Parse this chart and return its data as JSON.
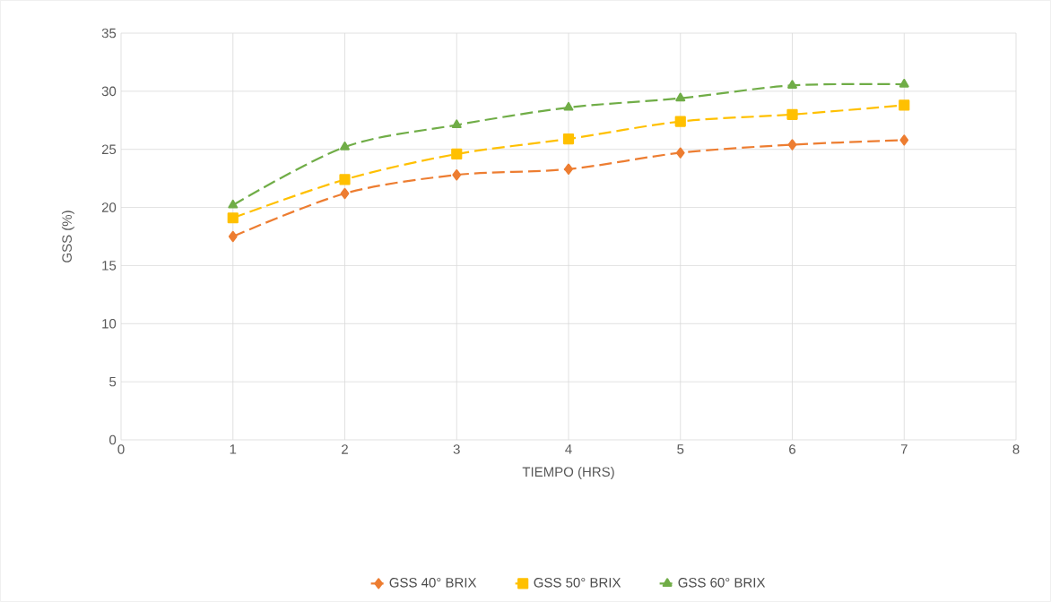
{
  "chart_data": {
    "type": "line",
    "xlabel": "TIEMPO (HRS)",
    "ylabel": "GSS (%)",
    "x": [
      1,
      2,
      3,
      4,
      5,
      6,
      7
    ],
    "series": [
      {
        "name": "GSS 40° BRIX",
        "color": "#ed7d31",
        "marker": "diamond",
        "values": [
          17.5,
          21.2,
          22.8,
          23.3,
          24.7,
          25.4,
          25.8
        ]
      },
      {
        "name": "GSS 50° BRIX",
        "color": "#ffc000",
        "marker": "square",
        "values": [
          19.1,
          22.4,
          24.6,
          25.9,
          27.4,
          28.0,
          28.8
        ]
      },
      {
        "name": "GSS 60° BRIX",
        "color": "#70ad47",
        "marker": "triangle",
        "values": [
          20.2,
          25.2,
          27.1,
          28.6,
          29.4,
          30.5,
          30.6
        ]
      }
    ],
    "xlim": [
      0,
      8
    ],
    "xticks": [
      0,
      1,
      2,
      3,
      4,
      5,
      6,
      7,
      8
    ],
    "ylim": [
      0,
      35
    ],
    "yticks": [
      0,
      5,
      10,
      15,
      20,
      25,
      30,
      35
    ],
    "grid": true,
    "legend": "bottom",
    "line_style": "dashed"
  }
}
